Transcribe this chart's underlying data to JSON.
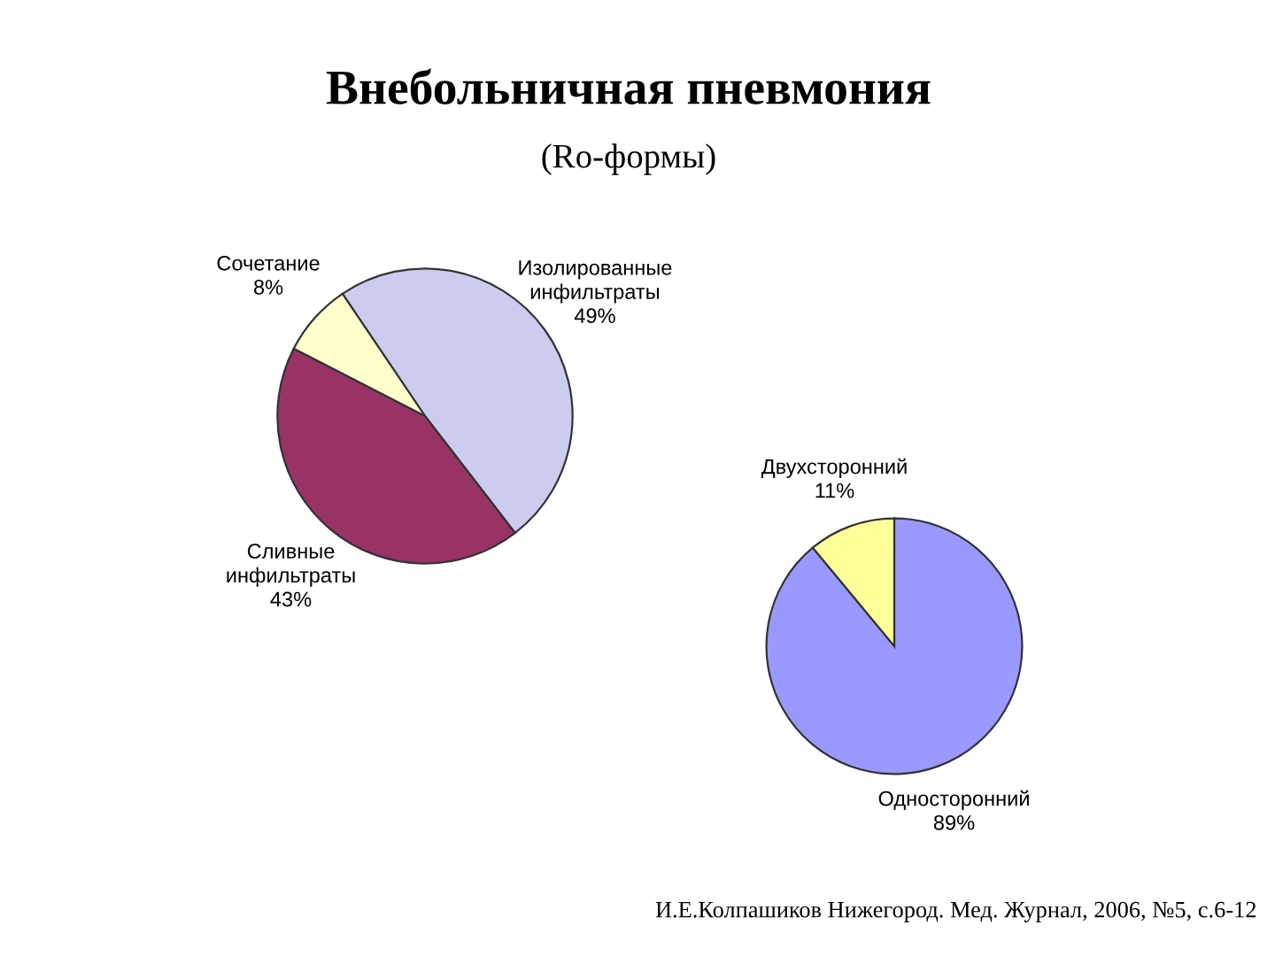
{
  "chart_data": [
    {
      "type": "pie",
      "title": "Внебольничная пневмония",
      "subtitle": "(Ro-формы)",
      "categories": [
        "Изолированные инфильтраты",
        "Сливные инфильтраты",
        "Сочетание"
      ],
      "values": [
        49,
        43,
        8
      ],
      "colors": [
        "#ccccee",
        "#993366",
        "#ffffcc"
      ],
      "value_labels": [
        "49%",
        "43%",
        "8%"
      ],
      "legend": false
    },
    {
      "type": "pie",
      "categories": [
        "Односторонний",
        "Двухсторонний"
      ],
      "values": [
        89,
        11
      ],
      "colors": [
        "#9999ff",
        "#ffff99"
      ],
      "value_labels": [
        "89%",
        "11%"
      ],
      "legend": false,
      "annotations": [
        "И.Е.Колпашиков Нижегород. Мед. Журнал, 2006, №5, с.6-12"
      ]
    }
  ]
}
